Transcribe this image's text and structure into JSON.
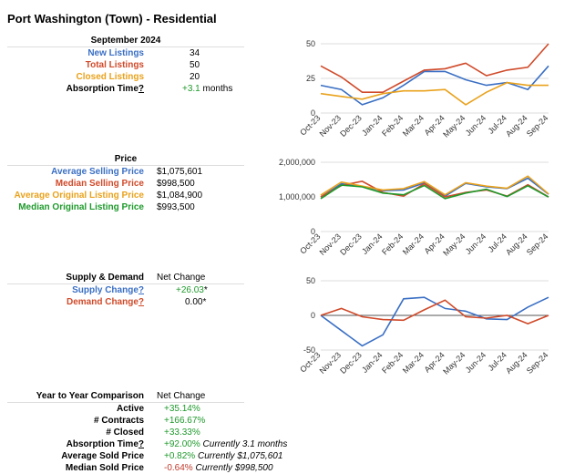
{
  "title": "Port Washington (Town) - Residential",
  "listings": {
    "header": "September 2024",
    "rows": [
      {
        "label": "New Listings",
        "value": "34",
        "color": "#3a6fc4"
      },
      {
        "label": "Total Listings",
        "value": "50",
        "color": "#d04a2a"
      },
      {
        "label": "Closed Listings",
        "value": "20",
        "color": "#e9a21c"
      }
    ],
    "absorption": {
      "label": "Absorption Time",
      "q": "?",
      "value_prefix": "+3.1",
      "value_unit": " months"
    }
  },
  "price": {
    "header": "Price",
    "rows": [
      {
        "label": "Average Selling Price",
        "value": "$1,075,601",
        "color": "#3a6fc4"
      },
      {
        "label": "Median Selling Price",
        "value": "$998,500",
        "color": "#d04a2a"
      },
      {
        "label": "Average Original Listing Price",
        "value": "$1,084,900",
        "color": "#e9a21c"
      },
      {
        "label": "Median Original Listing Price",
        "value": "$993,500",
        "color": "#1f9a2c"
      }
    ]
  },
  "supply": {
    "header": "Supply & Demand",
    "col": "Net Change",
    "rows": [
      {
        "label": "Supply Change",
        "q": "?",
        "value": "+26.03",
        "suffix": "*",
        "color": "#3a6fc4",
        "vcolor": "#1f9a2c"
      },
      {
        "label": "Demand Change",
        "q": "?",
        "value": "0.00",
        "suffix": "*",
        "color": "#d04a2a",
        "vcolor": "#000000"
      }
    ]
  },
  "yoy": {
    "header": "Year to Year Comparison",
    "col": "Net Change",
    "rows": [
      {
        "label": "Active",
        "value": "+35.14%",
        "vcolor": "#1f9a2c",
        "note": ""
      },
      {
        "label": "# Contracts",
        "value": "+166.67%",
        "vcolor": "#1f9a2c",
        "note": ""
      },
      {
        "label": "# Closed",
        "value": "+33.33%",
        "vcolor": "#1f9a2c",
        "note": ""
      },
      {
        "label": "Absorption Time",
        "q": "?",
        "value": "+92.00%",
        "vcolor": "#1f9a2c",
        "note": "Currently 3.1 months"
      },
      {
        "label": "Average Sold Price",
        "value": "+0.82%",
        "vcolor": "#1f9a2c",
        "note": "Currently $1,075,601"
      },
      {
        "label": "Median Sold Price",
        "value": "-0.64%",
        "vcolor": "#c0392b",
        "note": "Currently $998,500"
      }
    ]
  },
  "chart_data": [
    {
      "type": "line",
      "categories": [
        "Oct-23",
        "Nov-23",
        "Dec-23",
        "Jan-24",
        "Feb-24",
        "Mar-24",
        "Apr-24",
        "May-24",
        "Jun-24",
        "Jul-24",
        "Aug-24",
        "Sep-24"
      ],
      "ylim": [
        0,
        50
      ],
      "yticks": [
        0,
        25,
        50
      ],
      "ytick_labels": [
        "0",
        "25",
        "50"
      ],
      "series": [
        {
          "name": "New Listings",
          "color": "#3a6fc4",
          "values": [
            20,
            17,
            6,
            11,
            20,
            30,
            30,
            24,
            20,
            22,
            17,
            34
          ]
        },
        {
          "name": "Total Listings",
          "color": "#d04a2a",
          "values": [
            34,
            26,
            15,
            15,
            23,
            31,
            32,
            36,
            27,
            31,
            33,
            50
          ]
        },
        {
          "name": "Closed Listings",
          "color": "#e9a21c",
          "values": [
            14,
            12,
            10,
            14,
            16,
            16,
            17,
            6,
            15,
            22,
            20,
            20
          ]
        }
      ]
    },
    {
      "type": "line",
      "categories": [
        "Oct-23",
        "Nov-23",
        "Dec-23",
        "Jan-24",
        "Feb-24",
        "Mar-24",
        "Apr-24",
        "May-24",
        "Jun-24",
        "Jul-24",
        "Aug-24",
        "Sep-24"
      ],
      "ylim": [
        0,
        2000000
      ],
      "yticks": [
        0,
        1000000,
        2000000
      ],
      "ytick_labels": [
        "0",
        "1,000,000",
        "2,000,000"
      ],
      "series": [
        {
          "name": "Average Selling Price",
          "color": "#3a6fc4",
          "values": [
            1000000,
            1380000,
            1300000,
            1180000,
            1200000,
            1400000,
            1020000,
            1390000,
            1290000,
            1240000,
            1540000,
            1075601
          ]
        },
        {
          "name": "Median Selling Price",
          "color": "#d04a2a",
          "values": [
            1000000,
            1330000,
            1450000,
            1130000,
            1020000,
            1380000,
            1000000,
            1130000,
            1200000,
            1020000,
            1350000,
            998500
          ]
        },
        {
          "name": "Average Original Listing Price",
          "color": "#e9a21c",
          "values": [
            1050000,
            1430000,
            1310000,
            1200000,
            1240000,
            1440000,
            1060000,
            1410000,
            1310000,
            1250000,
            1600000,
            1084900
          ]
        },
        {
          "name": "Median Original Listing Price",
          "color": "#1f9a2c",
          "values": [
            950000,
            1340000,
            1290000,
            1110000,
            1060000,
            1330000,
            950000,
            1110000,
            1220000,
            1010000,
            1320000,
            993500
          ]
        }
      ]
    },
    {
      "type": "line",
      "categories": [
        "Oct-23",
        "Nov-23",
        "Dec-23",
        "Jan-24",
        "Feb-24",
        "Mar-24",
        "Apr-24",
        "May-24",
        "Jun-24",
        "Jul-24",
        "Aug-24",
        "Sep-24"
      ],
      "ylim": [
        -50,
        50
      ],
      "yticks": [
        -50,
        0,
        50
      ],
      "ytick_labels": [
        "-50",
        "0",
        "50"
      ],
      "series": [
        {
          "name": "Supply Change",
          "color": "#3a6fc4",
          "values": [
            0,
            -22,
            -44,
            -28,
            24,
            26,
            10,
            6,
            -5,
            -6,
            12,
            26
          ]
        },
        {
          "name": "Demand Change",
          "color": "#d04a2a",
          "values": [
            0,
            10,
            -2,
            -6,
            -7,
            8,
            22,
            -2,
            -4,
            0,
            -12,
            0
          ]
        }
      ]
    }
  ]
}
